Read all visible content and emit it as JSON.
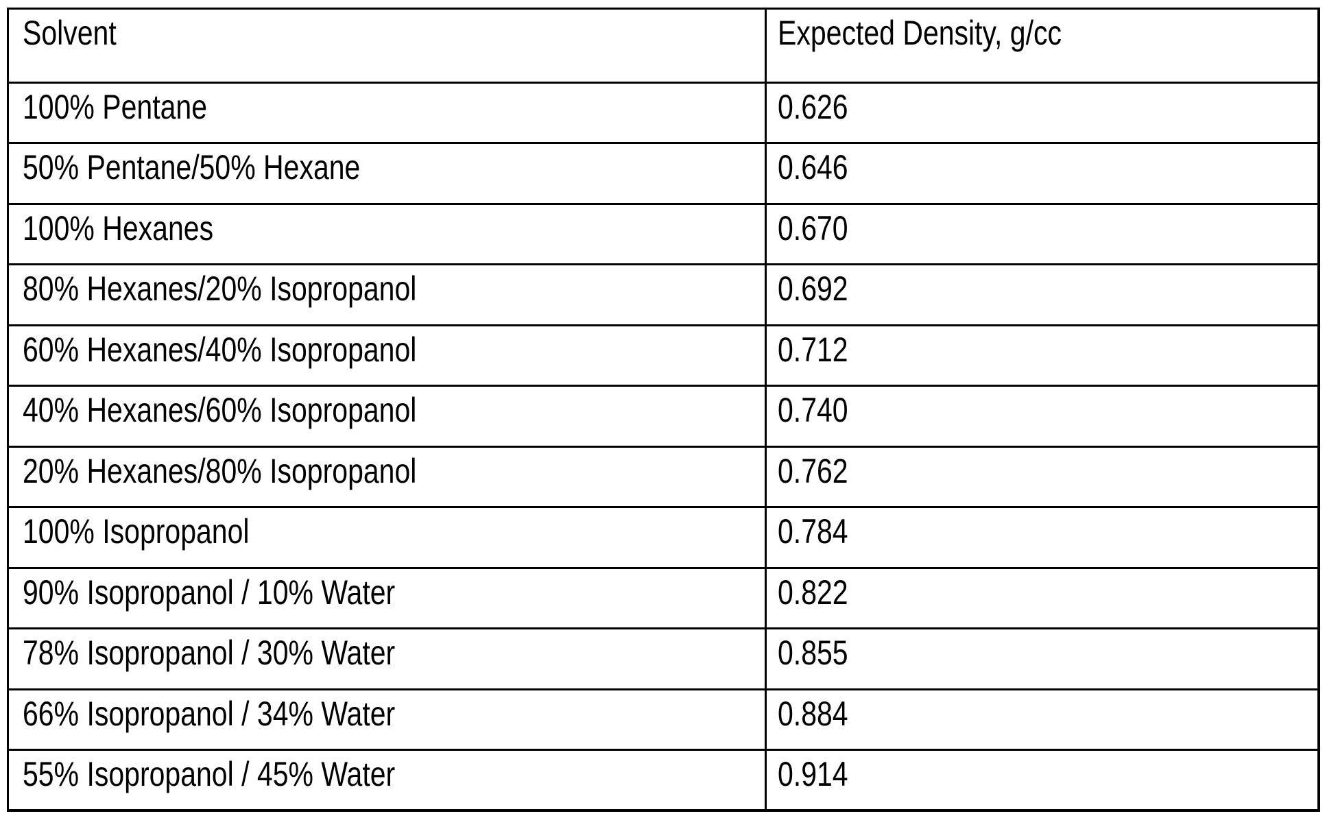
{
  "table": {
    "columns": [
      "Solvent",
      "Expected Density, g/cc"
    ],
    "rows": [
      {
        "solvent": "100% Pentane",
        "density": "0.626"
      },
      {
        "solvent": "50% Pentane/50% Hexane",
        "density": "0.646"
      },
      {
        "solvent": "100% Hexanes",
        "density": "0.670"
      },
      {
        "solvent": "80% Hexanes/20% Isopropanol",
        "density": "0.692"
      },
      {
        "solvent": "60% Hexanes/40% Isopropanol",
        "density": "0.712"
      },
      {
        "solvent": "40% Hexanes/60% Isopropanol",
        "density": "0.740"
      },
      {
        "solvent": "20% Hexanes/80% Isopropanol",
        "density": "0.762"
      },
      {
        "solvent": "100% Isopropanol",
        "density": "0.784"
      },
      {
        "solvent": "90% Isopropanol / 10% Water",
        "density": "0.822"
      },
      {
        "solvent": "78% Isopropanol / 30% Water",
        "density": "0.855"
      },
      {
        "solvent": "66% Isopropanol / 34% Water",
        "density": "0.884"
      },
      {
        "solvent": "55% Isopropanol / 45% Water",
        "density": "0.914"
      }
    ]
  },
  "colors": {
    "border": "#000000",
    "text": "#000000",
    "background": "#ffffff"
  }
}
